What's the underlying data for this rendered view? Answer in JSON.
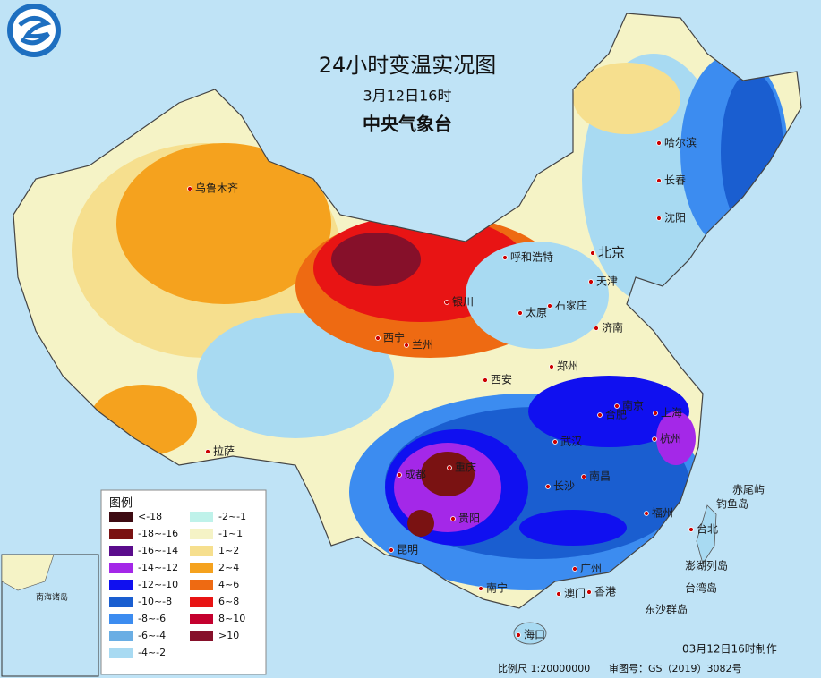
{
  "title": "24小时变温实况图",
  "subtitle": "3月12日16时",
  "agency": "中央气象台",
  "legend": {
    "title": "图例",
    "items": [
      {
        "label": "<-18",
        "color": "#3d0a12"
      },
      {
        "label": "-18~-16",
        "color": "#7a1212"
      },
      {
        "label": "-16~-14",
        "color": "#5a0c8c"
      },
      {
        "label": "-14~-12",
        "color": "#a428e8"
      },
      {
        "label": "-12~-10",
        "color": "#1010f0"
      },
      {
        "label": "-10~-8",
        "color": "#1a5ed0"
      },
      {
        "label": "-8~-6",
        "color": "#3c8cf0"
      },
      {
        "label": "-6~-4",
        "color": "#6aaee4"
      },
      {
        "label": "-4~-2",
        "color": "#a8daf2"
      },
      {
        "label": "-2~-1",
        "color": "#bff2ea"
      },
      {
        "label": "-1~1",
        "color": "#f5f3c6"
      },
      {
        "label": "1~2",
        "color": "#f6df8e"
      },
      {
        "label": "2~4",
        "color": "#f5a21e"
      },
      {
        "label": "4~6",
        "color": "#ee6a12"
      },
      {
        "label": "6~8",
        "color": "#e81414"
      },
      {
        "label": "8~10",
        "color": "#c4002e"
      },
      {
        "label": ">10",
        "color": "#86102a"
      }
    ]
  },
  "cities": [
    "乌鲁木齐",
    "呼和浩特",
    "北京",
    "天津",
    "石家庄",
    "太原",
    "济南",
    "银川",
    "西宁",
    "兰州",
    "西安",
    "郑州",
    "合肥",
    "南京",
    "上海",
    "杭州",
    "武汉",
    "成都",
    "重庆",
    "长沙",
    "南昌",
    "贵阳",
    "昆明",
    "福州",
    "台北",
    "广州",
    "澳门",
    "香港",
    "南宁",
    "海口",
    "拉萨",
    "哈尔滨",
    "长春",
    "沈阳"
  ],
  "islands": [
    "赤尾屿",
    "钓鱼岛",
    "澎湖列岛",
    "台湾岛",
    "东沙群岛"
  ],
  "inset_label": "南海诸岛",
  "footer": {
    "scale": "比例尺 1:20000000",
    "approval": "审图号：GS（2019）3082号",
    "made": "03月12日16时制作"
  }
}
